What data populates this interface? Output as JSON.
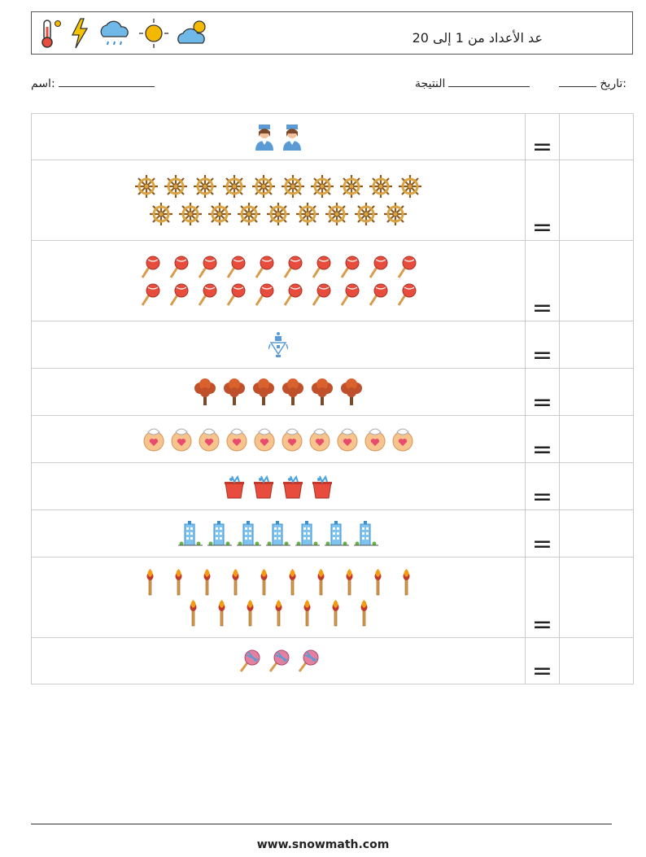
{
  "header": {
    "title": "عد الأعداد من 1 إلى 20",
    "icons": [
      "thermometer-icon",
      "lightning-icon",
      "rain-cloud-icon",
      "sun-icon",
      "cloud-sun-icon"
    ]
  },
  "info": {
    "name_label": ":اسم",
    "result_label": "النتيجة",
    "date_label": ":تاريخ"
  },
  "rows": [
    {
      "item": "nurse-icon",
      "lines": [
        2
      ],
      "equals": "="
    },
    {
      "item": "ship-wheel-icon",
      "lines": [
        10,
        9
      ],
      "equals": "="
    },
    {
      "item": "lollipop-icon",
      "lines": [
        10,
        10
      ],
      "equals": "="
    },
    {
      "item": "robot-icon",
      "lines": [
        1
      ],
      "equals": "="
    },
    {
      "item": "tree-icon",
      "lines": [
        6
      ],
      "equals": "="
    },
    {
      "item": "baby-bib-icon",
      "lines": [
        10
      ],
      "equals": "="
    },
    {
      "item": "bucket-icon",
      "lines": [
        4
      ],
      "equals": "="
    },
    {
      "item": "building-icon",
      "lines": [
        7
      ],
      "equals": "="
    },
    {
      "item": "match-icon",
      "lines": [
        10,
        7
      ],
      "equals": "="
    },
    {
      "item": "candy-icon",
      "lines": [
        3
      ],
      "equals": "="
    }
  ],
  "footer": {
    "url": "www.snowmath.com"
  }
}
